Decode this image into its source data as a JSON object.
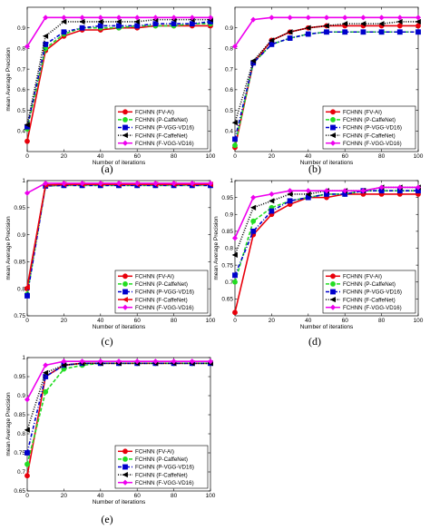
{
  "chart_data": [
    {
      "caption": "(a)",
      "type": "line",
      "xlabel": "Number of iterations",
      "ylabel": "mean Average Precision",
      "xlim": [
        0,
        100
      ],
      "ylim": [
        0.3,
        1.0
      ],
      "xticks": [
        0,
        20,
        40,
        60,
        80,
        100
      ],
      "yticks": [
        0.4,
        0.5,
        0.6,
        0.7,
        0.8,
        0.9
      ],
      "legend_position": "bottom-right",
      "series": [
        {
          "name": "FCHNN (FV-AI)",
          "color": "#e8000b",
          "marker": "circle",
          "dash": "solid",
          "x": [
            0,
            10,
            20,
            30,
            40,
            50,
            60,
            70,
            80,
            90,
            100
          ],
          "y": [
            0.35,
            0.79,
            0.86,
            0.89,
            0.89,
            0.9,
            0.9,
            0.91,
            0.91,
            0.91,
            0.91
          ]
        },
        {
          "name": "FCHNN (P-CaffeNet)",
          "color": "#22dd22",
          "marker": "circle",
          "dash": "dashed",
          "x": [
            0,
            10,
            20,
            30,
            40,
            50,
            60,
            70,
            80,
            90,
            100
          ],
          "y": [
            0.41,
            0.8,
            0.87,
            0.9,
            0.9,
            0.9,
            0.91,
            0.91,
            0.91,
            0.92,
            0.92
          ]
        },
        {
          "name": "FCHNN (P-VGG-VD16)",
          "color": "#0000cc",
          "marker": "square",
          "dash": "dashdot",
          "x": [
            0,
            10,
            20,
            30,
            40,
            50,
            60,
            70,
            80,
            90,
            100
          ],
          "y": [
            0.42,
            0.82,
            0.88,
            0.9,
            0.91,
            0.91,
            0.91,
            0.92,
            0.92,
            0.92,
            0.93
          ]
        },
        {
          "name": "FCHNN (F-CaffeNet)",
          "color": "#000000",
          "marker": "triangle",
          "dash": "dotted",
          "x": [
            0,
            10,
            20,
            30,
            40,
            50,
            60,
            70,
            80,
            90,
            100
          ],
          "y": [
            0.43,
            0.86,
            0.93,
            0.93,
            0.93,
            0.93,
            0.93,
            0.94,
            0.94,
            0.94,
            0.94
          ]
        },
        {
          "name": "FCHNN (F-VGG-VD16)",
          "color": "#ee00ee",
          "marker": "diamond",
          "dash": "solid",
          "x": [
            0,
            10,
            20,
            30,
            40,
            50,
            60,
            70,
            80,
            90,
            100
          ],
          "y": [
            0.81,
            0.95,
            0.95,
            0.95,
            0.95,
            0.95,
            0.95,
            0.95,
            0.95,
            0.95,
            0.95
          ]
        }
      ]
    },
    {
      "caption": "(b)",
      "type": "line",
      "xlabel": "Number of iterations",
      "ylabel": "",
      "xlim": [
        0,
        100
      ],
      "ylim": [
        0.3,
        1.0
      ],
      "xticks": [
        0,
        20,
        40,
        60,
        80,
        100
      ],
      "yticks": [
        0.4,
        0.5,
        0.6,
        0.7,
        0.8,
        0.9
      ],
      "legend_position": "bottom-right",
      "series": [
        {
          "name": "FCHNN (FV-AI)",
          "color": "#e8000b",
          "marker": "circle",
          "dash": "solid",
          "x": [
            0,
            10,
            20,
            30,
            40,
            50,
            60,
            70,
            80,
            90,
            100
          ],
          "y": [
            0.32,
            0.73,
            0.84,
            0.88,
            0.9,
            0.91,
            0.91,
            0.91,
            0.91,
            0.91,
            0.91
          ]
        },
        {
          "name": "FCHNN (P-CaffeNet)",
          "color": "#22dd22",
          "marker": "circle",
          "dash": "dashed",
          "x": [
            0,
            10,
            20,
            30,
            40,
            50,
            60,
            70,
            80,
            90,
            100
          ],
          "y": [
            0.33,
            0.73,
            0.82,
            0.85,
            0.87,
            0.88,
            0.88,
            0.88,
            0.88,
            0.88,
            0.88
          ]
        },
        {
          "name": "FCHNN (P-VGG-VD16)",
          "color": "#0000cc",
          "marker": "square",
          "dash": "dashdot",
          "x": [
            0,
            10,
            20,
            30,
            40,
            50,
            60,
            70,
            80,
            90,
            100
          ],
          "y": [
            0.36,
            0.73,
            0.82,
            0.85,
            0.87,
            0.88,
            0.88,
            0.88,
            0.88,
            0.88,
            0.88
          ]
        },
        {
          "name": "FCHNN (F-CaffeNet)",
          "color": "#000000",
          "marker": "triangle",
          "dash": "dotted",
          "x": [
            0,
            10,
            20,
            30,
            40,
            50,
            60,
            70,
            80,
            90,
            100
          ],
          "y": [
            0.44,
            0.74,
            0.84,
            0.88,
            0.9,
            0.91,
            0.92,
            0.92,
            0.92,
            0.93,
            0.93
          ]
        },
        {
          "name": "FCHNN (F-VGG-VD16)",
          "color": "#ee00ee",
          "marker": "diamond",
          "dash": "solid",
          "x": [
            0,
            10,
            20,
            30,
            40,
            50,
            60,
            70,
            80,
            90,
            100
          ],
          "y": [
            0.81,
            0.94,
            0.95,
            0.95,
            0.95,
            0.95,
            0.95,
            0.95,
            0.95,
            0.95,
            0.95
          ]
        }
      ]
    },
    {
      "caption": "(c)",
      "type": "line",
      "xlabel": "Number of iterations",
      "ylabel": "mean Average Precision",
      "xlim": [
        0,
        100
      ],
      "ylim": [
        0.75,
        1.0
      ],
      "xticks": [
        0,
        20,
        40,
        60,
        80,
        100
      ],
      "yticks": [
        0.75,
        0.8,
        0.85,
        0.9,
        0.95,
        1
      ],
      "legend_position": "bottom-right",
      "series": [
        {
          "name": "FCHNN (FV-AI)",
          "color": "#e8000b",
          "marker": "circle",
          "dash": "solid",
          "x": [
            0,
            10,
            20,
            30,
            40,
            50,
            60,
            70,
            80,
            90,
            100
          ],
          "y": [
            0.8,
            0.991,
            0.992,
            0.993,
            0.993,
            0.993,
            0.993,
            0.993,
            0.993,
            0.993,
            0.993
          ]
        },
        {
          "name": "FCHNN (P-CaffeNet)",
          "color": "#22dd22",
          "marker": "circle",
          "dash": "dashed",
          "x": [
            0,
            10,
            20,
            30,
            40,
            50,
            60,
            70,
            80,
            90,
            100
          ],
          "y": [
            0.79,
            0.99,
            0.991,
            0.991,
            0.991,
            0.991,
            0.991,
            0.991,
            0.991,
            0.991,
            0.991
          ]
        },
        {
          "name": "FCHNN (P-VGG-VD16)",
          "color": "#0000cc",
          "marker": "square",
          "dash": "dashdot",
          "x": [
            0,
            10,
            20,
            30,
            40,
            50,
            60,
            70,
            80,
            90,
            100
          ],
          "y": [
            0.787,
            0.99,
            0.991,
            0.991,
            0.991,
            0.991,
            0.991,
            0.991,
            0.991,
            0.991,
            0.991
          ]
        },
        {
          "name": "FCHNN (F-CaffeNet)",
          "color": "#e8000b",
          "marker": "triangle",
          "dash": "solid",
          "x": [
            0,
            10,
            20,
            30,
            40,
            50,
            60,
            70,
            80,
            90,
            100
          ],
          "y": [
            0.803,
            0.992,
            0.993,
            0.993,
            0.993,
            0.993,
            0.993,
            0.993,
            0.993,
            0.993,
            0.993
          ]
        },
        {
          "name": "FCHNN (F-VGG-VD16)",
          "color": "#ee00ee",
          "marker": "diamond",
          "dash": "solid",
          "x": [
            0,
            10,
            20,
            30,
            40,
            50,
            60,
            70,
            80,
            90,
            100
          ],
          "y": [
            0.977,
            0.995,
            0.995,
            0.995,
            0.995,
            0.995,
            0.995,
            0.995,
            0.995,
            0.995,
            0.995
          ]
        }
      ]
    },
    {
      "caption": "(d)",
      "type": "line",
      "xlabel": "Number of iterations",
      "ylabel": "mean Average Precision",
      "xlim": [
        0,
        100
      ],
      "ylim": [
        0.6,
        1.0
      ],
      "xticks": [
        0,
        20,
        40,
        60,
        80,
        100
      ],
      "yticks": [
        0.65,
        0.7,
        0.75,
        0.8,
        0.85,
        0.9,
        0.95,
        1
      ],
      "legend_position": "bottom-right",
      "series": [
        {
          "name": "FCHNN (FV-AI)",
          "color": "#e8000b",
          "marker": "circle",
          "dash": "solid",
          "x": [
            0,
            10,
            20,
            30,
            40,
            50,
            60,
            70,
            80,
            90,
            100
          ],
          "y": [
            0.61,
            0.84,
            0.9,
            0.93,
            0.95,
            0.95,
            0.96,
            0.96,
            0.96,
            0.96,
            0.96
          ]
        },
        {
          "name": "FCHNN (P-CaffeNet)",
          "color": "#22dd22",
          "marker": "circle",
          "dash": "dashed",
          "x": [
            0,
            10,
            20,
            30,
            40,
            50,
            60,
            70,
            80,
            90,
            100
          ],
          "y": [
            0.7,
            0.88,
            0.92,
            0.94,
            0.95,
            0.96,
            0.96,
            0.97,
            0.97,
            0.97,
            0.97
          ]
        },
        {
          "name": "FCHNN (P-VGG-VD16)",
          "color": "#0000cc",
          "marker": "square",
          "dash": "dashdot",
          "x": [
            0,
            10,
            20,
            30,
            40,
            50,
            60,
            70,
            80,
            90,
            100
          ],
          "y": [
            0.72,
            0.85,
            0.91,
            0.94,
            0.95,
            0.96,
            0.96,
            0.97,
            0.97,
            0.97,
            0.97
          ]
        },
        {
          "name": "FCHNN (F-CaffeNet)",
          "color": "#000000",
          "marker": "triangle",
          "dash": "dotted",
          "x": [
            0,
            10,
            20,
            30,
            40,
            50,
            60,
            70,
            80,
            90,
            100
          ],
          "y": [
            0.78,
            0.92,
            0.94,
            0.96,
            0.96,
            0.97,
            0.97,
            0.97,
            0.98,
            0.98,
            0.98
          ]
        },
        {
          "name": "FCHNN (F-VGG-VD16)",
          "color": "#ee00ee",
          "marker": "diamond",
          "dash": "solid",
          "x": [
            0,
            10,
            20,
            30,
            40,
            50,
            60,
            70,
            80,
            90,
            100
          ],
          "y": [
            0.83,
            0.95,
            0.96,
            0.97,
            0.97,
            0.97,
            0.97,
            0.97,
            0.98,
            0.98,
            0.98
          ]
        }
      ]
    },
    {
      "caption": "(e)",
      "type": "line",
      "xlabel": "Number of iterations",
      "ylabel": "mean Average Precision",
      "xlim": [
        0,
        100
      ],
      "ylim": [
        0.65,
        1.0
      ],
      "xticks": [
        0,
        20,
        40,
        60,
        80,
        100
      ],
      "yticks": [
        0.65,
        0.7,
        0.75,
        0.8,
        0.85,
        0.9,
        0.95,
        1
      ],
      "legend_position": "bottom-right",
      "series": [
        {
          "name": "FCHNN (FV-AI)",
          "color": "#e8000b",
          "marker": "circle",
          "dash": "solid",
          "x": [
            0,
            10,
            20,
            30,
            40,
            50,
            60,
            70,
            80,
            90,
            100
          ],
          "y": [
            0.69,
            0.95,
            0.98,
            0.985,
            0.985,
            0.985,
            0.985,
            0.985,
            0.985,
            0.985,
            0.985
          ]
        },
        {
          "name": "FCHNN (P-CaffeNet)",
          "color": "#22dd22",
          "marker": "circle",
          "dash": "dashed",
          "x": [
            0,
            10,
            20,
            30,
            40,
            50,
            60,
            70,
            80,
            90,
            100
          ],
          "y": [
            0.72,
            0.91,
            0.97,
            0.98,
            0.985,
            0.985,
            0.985,
            0.985,
            0.985,
            0.985,
            0.985
          ]
        },
        {
          "name": "FCHNN (P-VGG-VD16)",
          "color": "#0000cc",
          "marker": "square",
          "dash": "dashdot",
          "x": [
            0,
            10,
            20,
            30,
            40,
            50,
            60,
            70,
            80,
            90,
            100
          ],
          "y": [
            0.75,
            0.95,
            0.98,
            0.985,
            0.985,
            0.985,
            0.985,
            0.985,
            0.985,
            0.985,
            0.985
          ]
        },
        {
          "name": "FCHNN (F-CaffeNet)",
          "color": "#000000",
          "marker": "triangle",
          "dash": "dotted",
          "x": [
            0,
            10,
            20,
            30,
            40,
            50,
            60,
            70,
            80,
            90,
            100
          ],
          "y": [
            0.81,
            0.96,
            0.98,
            0.985,
            0.985,
            0.985,
            0.985,
            0.985,
            0.985,
            0.985,
            0.985
          ]
        },
        {
          "name": "FCHNN (F-VGG-VD16)",
          "color": "#ee00ee",
          "marker": "diamond",
          "dash": "solid",
          "x": [
            0,
            10,
            20,
            30,
            40,
            50,
            60,
            70,
            80,
            90,
            100
          ],
          "y": [
            0.89,
            0.98,
            0.99,
            0.99,
            0.99,
            0.99,
            0.99,
            0.99,
            0.99,
            0.99,
            0.99
          ]
        }
      ]
    }
  ]
}
